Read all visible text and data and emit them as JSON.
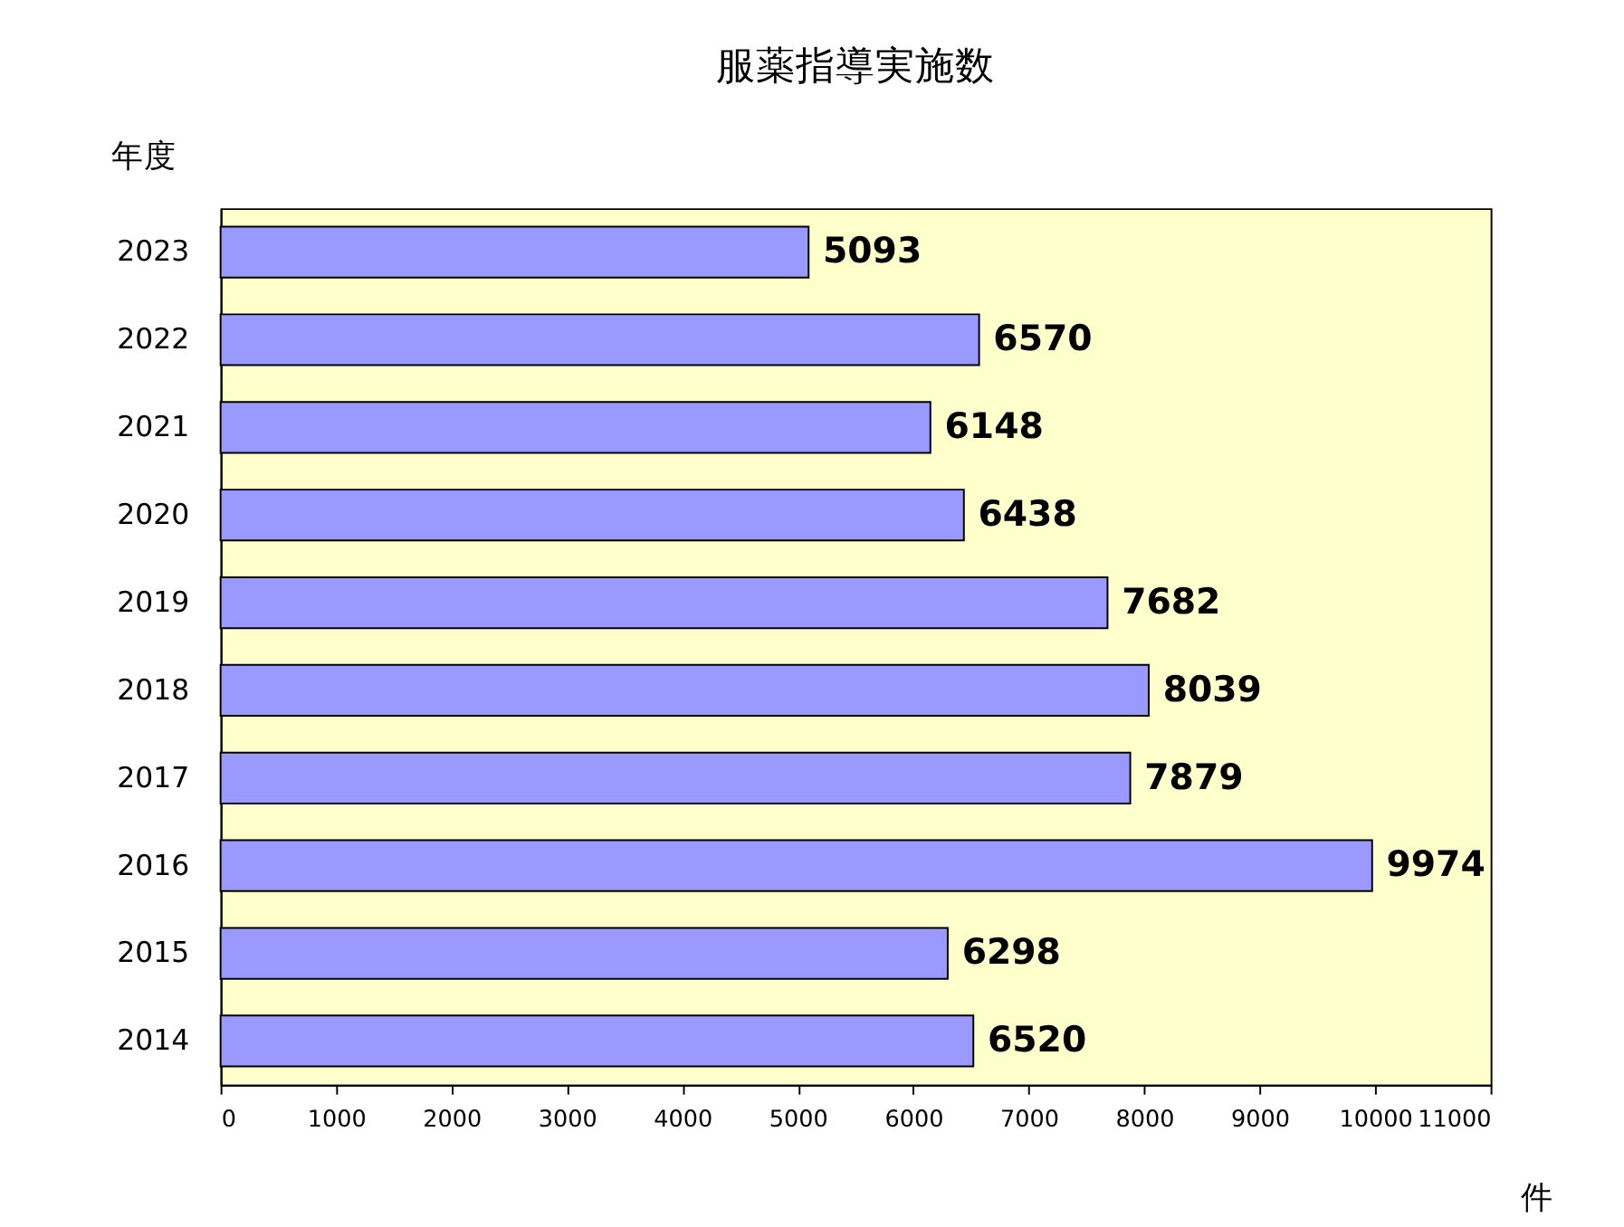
{
  "chart_data": {
    "type": "bar",
    "orientation": "horizontal",
    "title": "服薬指導実施数",
    "xlabel": "件",
    "ylabel": "年度",
    "categories": [
      "2023",
      "2022",
      "2021",
      "2020",
      "2019",
      "2018",
      "2017",
      "2016",
      "2015",
      "2014"
    ],
    "values": [
      5093,
      6570,
      6148,
      6438,
      7682,
      8039,
      7879,
      9974,
      6298,
      6520
    ],
    "color": "#9999ff",
    "data_labels": true,
    "grid": false,
    "xlim": [
      0,
      11000
    ],
    "xticks": [
      0,
      1000,
      2000,
      3000,
      4000,
      5000,
      6000,
      7000,
      8000,
      9000,
      10000,
      11000
    ]
  }
}
